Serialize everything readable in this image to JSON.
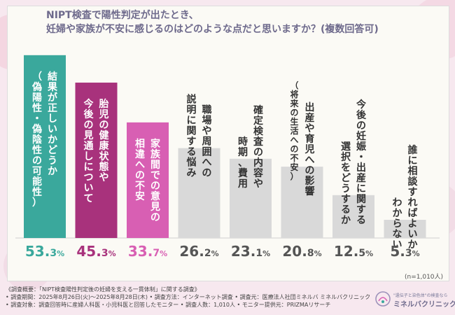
{
  "title_lines": [
    "NIPT検査で陽性判定が出たとき、",
    "妊婦や家族が不安に感じるのはどのような点だと思いますか？(複数回答可)"
  ],
  "chart_data": {
    "type": "bar",
    "title": "NIPT検査で陽性判定が出たとき、妊婦や家族が不安に感じるのはどのような点だと思いますか？(複数回答可)",
    "categories": [
      "結果が正しいかどうか（偽陽性・偽陰性の可能性）",
      "胎児の健康状態や今後の見通しについて",
      "家族間での意見の相違への不安",
      "職場や周囲への説明に関する悩み",
      "確定検査の内容や時期、費用",
      "出産や育児への影響（将来の生活への不安）",
      "今後の妊娠・出産に関する選択をどうするか",
      "誰に相談すればよいかわからない"
    ],
    "values": [
      53.3,
      45.3,
      33.7,
      26.2,
      23.1,
      20.8,
      12.5,
      5.3
    ],
    "value_labels": [
      {
        "int": "53.",
        "dec": "3",
        "unit": "%"
      },
      {
        "int": "45.",
        "dec": "3",
        "unit": "%"
      },
      {
        "int": "33.",
        "dec": "7",
        "unit": "%"
      },
      {
        "int": "26.",
        "dec": "2",
        "unit": "%"
      },
      {
        "int": "23.",
        "dec": "1",
        "unit": "%"
      },
      {
        "int": "20.",
        "dec": "8",
        "unit": "%"
      },
      {
        "int": "12.",
        "dec": "5",
        "unit": "%"
      },
      {
        "int": "5.",
        "dec": "3",
        "unit": "%"
      }
    ],
    "bar_text": [
      [
        "結果が正しいかどうか",
        "（偽陽性・偽陰性の可能性）"
      ],
      [
        "胎児の健康状態や",
        "今後の見通しについて"
      ],
      [
        "家族間での意見の",
        "相違への不安"
      ],
      [
        "職場や周囲への",
        "説明に関する悩み"
      ],
      [
        "確定検査の内容や",
        "時期、費用"
      ],
      [
        "出産や育児への影響",
        "（将来の生活への不安）"
      ],
      [
        "今後の妊娠・出産に関する",
        "選択をどうするか"
      ],
      [
        "誰に相談すればよいか",
        "わからない"
      ]
    ],
    "ylim": [
      0,
      60
    ],
    "colors": {
      "bars": [
        "#3aa89c",
        "#a8327c",
        "#d85fb3",
        "#d9d9d9",
        "#d9d9d9",
        "#d9d9d9",
        "#d9d9d9",
        "#d9d9d9"
      ],
      "text_light": "#ffffff",
      "text_dark": "#333333",
      "value_colors": [
        "#3aa89c",
        "#a8327c",
        "#d85fb3",
        "#555555",
        "#555555",
        "#555555",
        "#555555",
        "#555555"
      ]
    }
  },
  "sample_note": "(n=1,010人)",
  "footer_lines": [
    "《調査概要：「NIPT検査陽性判定後の妊婦を支える一貫体制」に関する調査》",
    "• 調査期間：2025年8月26日(火)～2025年8月28日(木)  • 調査方法：インターネット調査  • 調査元：医療法人社団ミネルバ ミネルバクリニック",
    "• 調査対象：調査回答時に産婦人科医・小児科医と回答したモニター  • 調査人数：1,010人  • モニター提供元：PRIZMAリサーチ"
  ],
  "logo": {
    "tagline": "\"遺伝子と染色体\"の検査なら",
    "name": "ミネルバクリニック"
  }
}
